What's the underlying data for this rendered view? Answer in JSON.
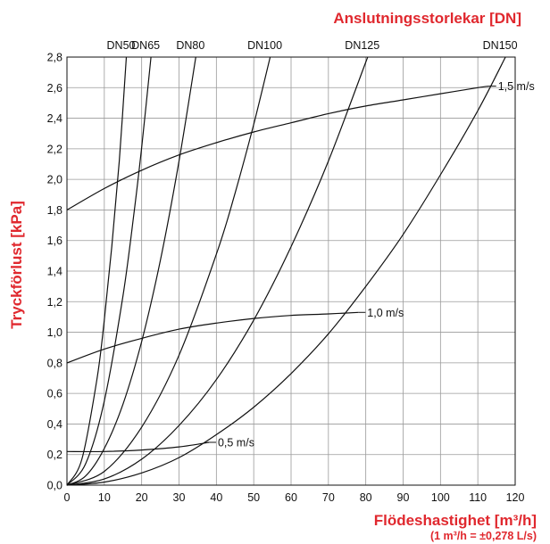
{
  "colors": {
    "accent": "#e0282e",
    "grid": "#9a9a9a",
    "curve": "#111111"
  },
  "chart_data": {
    "type": "line",
    "title": "Anslutningsstorlekar [DN]",
    "xlabel": "Flödeshastighet [m³/h]",
    "xlabel_note": "(1 m³/h = ±0,278 L/s)",
    "ylabel": "Tryckförlust [kPa]",
    "xlim": [
      0,
      120
    ],
    "ylim": [
      0,
      2.8
    ],
    "xticks": [
      "0",
      "10",
      "20",
      "30",
      "40",
      "50",
      "60",
      "70",
      "80",
      "90",
      "100",
      "110",
      "120"
    ],
    "yticks": [
      "0,0",
      "0,2",
      "0,4",
      "0,6",
      "0,8",
      "1,0",
      "1,2",
      "1,4",
      "1,6",
      "1,8",
      "2,0",
      "2,2",
      "2,4",
      "2,6",
      "2,8"
    ],
    "grid": true,
    "series": [
      {
        "name": "DN50",
        "x": [
          0,
          4,
          8,
          10,
          12,
          14,
          15.9
        ],
        "y": [
          0,
          0.17,
          0.69,
          1.08,
          1.56,
          2.12,
          2.8
        ]
      },
      {
        "name": "DN65",
        "x": [
          0,
          5,
          10,
          15,
          18,
          20,
          22.5
        ],
        "y": [
          0,
          0.14,
          0.55,
          1.24,
          1.79,
          2.21,
          2.8
        ]
      },
      {
        "name": "DN80",
        "x": [
          0,
          5,
          10,
          15,
          20,
          25,
          30,
          34.5
        ],
        "y": [
          0,
          0.06,
          0.24,
          0.53,
          0.94,
          1.47,
          2.12,
          2.8
        ]
      },
      {
        "name": "DN100",
        "x": [
          0,
          10,
          20,
          30,
          40,
          45,
          50,
          54.4
        ],
        "y": [
          0,
          0.09,
          0.38,
          0.85,
          1.51,
          1.91,
          2.36,
          2.8
        ]
      },
      {
        "name": "DN125",
        "x": [
          0,
          10,
          20,
          30,
          40,
          50,
          60,
          70,
          80.5
        ],
        "y": [
          0,
          0.04,
          0.17,
          0.39,
          0.69,
          1.08,
          1.56,
          2.12,
          2.8
        ]
      },
      {
        "name": "DN150",
        "x": [
          0,
          10,
          20,
          30,
          40,
          50,
          60,
          70,
          80,
          90,
          100,
          110,
          117.4
        ],
        "y": [
          0,
          0.02,
          0.08,
          0.18,
          0.33,
          0.51,
          0.73,
          0.99,
          1.3,
          1.64,
          2.03,
          2.45,
          2.8
        ]
      },
      {
        "name": "1,5 m/s",
        "x": [
          0,
          10,
          20,
          30,
          40,
          50,
          60,
          70,
          80,
          90,
          100,
          110,
          113
        ],
        "y": [
          1.8,
          1.94,
          2.06,
          2.16,
          2.24,
          2.31,
          2.37,
          2.43,
          2.48,
          2.52,
          2.56,
          2.6,
          2.61
        ]
      },
      {
        "name": "1,0 m/s",
        "x": [
          0,
          10,
          20,
          30,
          40,
          50,
          60,
          70,
          78
        ],
        "y": [
          0.8,
          0.89,
          0.96,
          1.02,
          1.06,
          1.09,
          1.11,
          1.12,
          1.13
        ]
      },
      {
        "name": "0,5 m/s",
        "x": [
          0,
          10,
          20,
          30,
          38
        ],
        "y": [
          0.22,
          0.22,
          0.23,
          0.25,
          0.28
        ]
      }
    ],
    "dn_labels": [
      "DN50",
      "DN65",
      "DN80",
      "DN100",
      "DN125",
      "DN150"
    ],
    "velocity_labels": [
      "1,5 m/s",
      "1,0 m/s",
      "0,5 m/s"
    ]
  }
}
